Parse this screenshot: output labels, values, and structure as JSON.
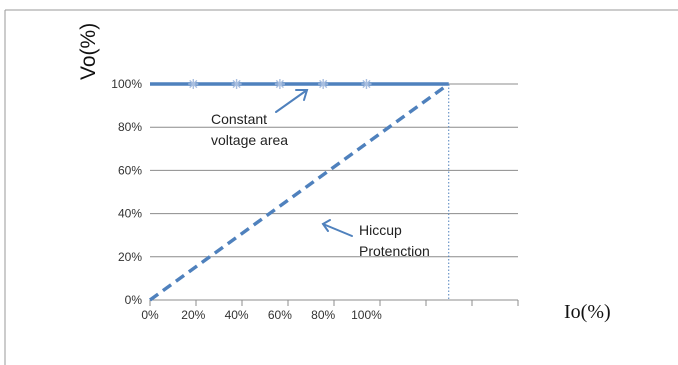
{
  "chart_data": {
    "type": "line",
    "xlabel": "Io(%)",
    "ylabel": "Vo(%)",
    "x_ticks": [
      "0%",
      "20%",
      "40%",
      "60%",
      "80%",
      "100%"
    ],
    "y_ticks": [
      "0%",
      "20%",
      "40%",
      "60%",
      "80%",
      "100%"
    ],
    "xlim": [
      0,
      170
    ],
    "ylim": [
      0,
      100
    ],
    "grid": "horizontal",
    "legend": "none",
    "series": [
      {
        "style": "solid",
        "color": "#4f81bd",
        "x": [
          0,
          138
        ],
        "y": [
          100,
          100
        ],
        "markers_x": [
          20,
          40,
          60,
          80,
          100
        ],
        "marker_color": "#a9bfe0"
      },
      {
        "style": "dashed",
        "color": "#4f81bd",
        "x": [
          0,
          138
        ],
        "y": [
          0,
          100
        ]
      }
    ],
    "vline": {
      "x": 138,
      "style": "dotted",
      "color": "#4f81bd"
    },
    "annotations": [
      {
        "lines": [
          "Constant",
          "voltage area"
        ]
      },
      {
        "lines": [
          "Hiccup",
          "Protenction"
        ]
      }
    ]
  }
}
